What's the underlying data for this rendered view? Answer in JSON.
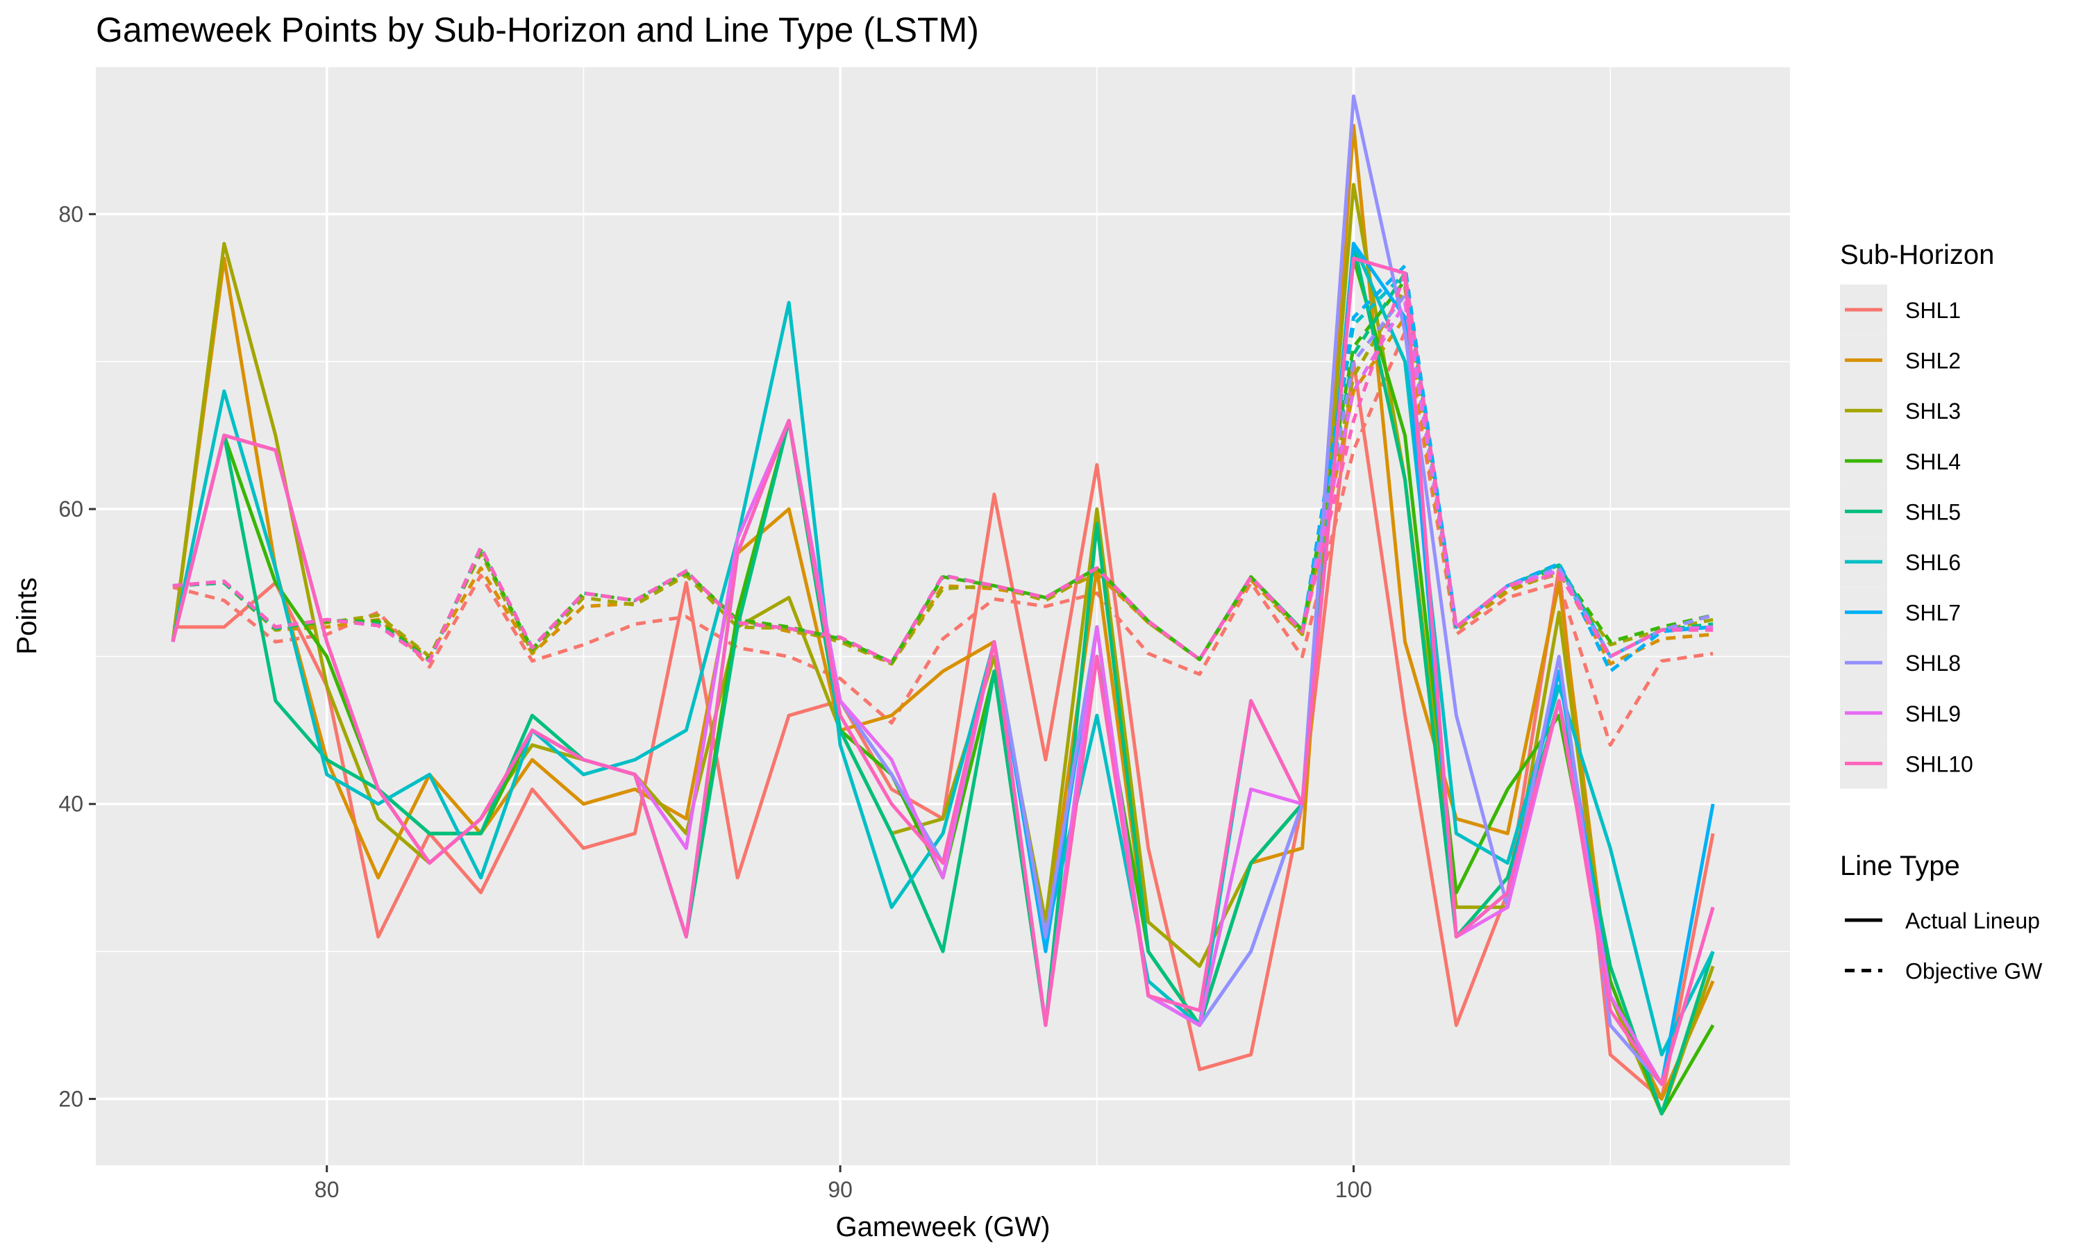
{
  "chart_data": {
    "type": "line",
    "title": "Gameweek Points by Sub-Horizon and Line Type (LSTM)",
    "xlabel": "Gameweek (GW)",
    "ylabel": "Points",
    "xlim": [
      75.5,
      108.5
    ],
    "ylim": [
      15.5,
      90.0
    ],
    "xticks": [
      80,
      90,
      100
    ],
    "yticks": [
      20,
      40,
      60,
      80
    ],
    "grid": true,
    "legend": {
      "placement": "right",
      "color_title": "Sub-Horizon",
      "linetype_title": "Line Type",
      "linetypes": [
        {
          "label": "Actual Lineup",
          "dash": "solid"
        },
        {
          "label": "Objective GW",
          "dash": "dashed"
        }
      ]
    },
    "x": [
      77,
      78,
      79,
      80,
      81,
      82,
      83,
      84,
      85,
      86,
      87,
      88,
      89,
      90,
      91,
      92,
      93,
      94,
      95,
      96,
      97,
      98,
      99,
      100,
      101,
      102,
      103,
      104,
      105,
      106,
      107
    ],
    "series": [
      {
        "name": "SHL1",
        "color": "#F8766D",
        "actual": [
          52,
          52,
          55,
          48,
          31,
          38,
          34,
          41,
          37,
          38,
          55,
          35,
          46,
          47,
          41,
          39,
          61,
          43,
          63,
          37,
          22,
          23,
          40,
          70,
          46,
          25,
          34,
          56,
          23,
          20,
          38
        ],
        "objective": [
          54.7,
          53.8,
          51.0,
          51.5,
          53.0,
          49.3,
          55.5,
          49.7,
          50.8,
          52.2,
          52.7,
          50.6,
          50.0,
          48.5,
          45.5,
          51.2,
          53.9,
          53.4,
          54.3,
          50.2,
          48.8,
          55.0,
          50.0,
          64.0,
          72.0,
          51.5,
          54.0,
          55.0,
          44.0,
          49.7,
          50.2
        ]
      },
      {
        "name": "SHL2",
        "color": "#D89000",
        "actual": [
          51,
          77,
          56,
          43,
          35,
          42,
          38,
          43,
          40,
          41,
          39,
          57,
          60,
          45,
          46,
          49,
          51,
          31,
          56,
          30,
          25,
          36,
          37,
          86,
          51,
          39,
          38,
          55,
          27,
          20,
          28
        ],
        "objective": [
          54.8,
          55.0,
          51.8,
          52.0,
          52.5,
          50.0,
          56.0,
          50.2,
          53.4,
          53.6,
          55.6,
          52.5,
          51.7,
          51.2,
          49.5,
          54.8,
          54.6,
          54.0,
          55.6,
          52.3,
          49.8,
          55.2,
          51.5,
          68.0,
          73.0,
          51.8,
          54.4,
          55.8,
          49.5,
          51.2,
          51.5
        ]
      },
      {
        "name": "SHL3",
        "color": "#A3A500",
        "actual": [
          51,
          78,
          65,
          48,
          39,
          36,
          39,
          44,
          43,
          42,
          38,
          52,
          54,
          45,
          38,
          39,
          50,
          32,
          60,
          32,
          29,
          36,
          40,
          82,
          62,
          33,
          33,
          53,
          27,
          19,
          29
        ],
        "objective": [
          54.8,
          55.0,
          51.8,
          52.3,
          52.8,
          50.0,
          57.0,
          50.3,
          54.0,
          53.5,
          55.5,
          52.0,
          51.9,
          51.0,
          49.5,
          54.6,
          54.8,
          53.8,
          55.8,
          52.3,
          49.8,
          55.4,
          51.5,
          69.0,
          75.0,
          51.8,
          54.6,
          55.6,
          50.8,
          51.8,
          52.5
        ]
      },
      {
        "name": "SHL4",
        "color": "#39B600",
        "actual": [
          51,
          65,
          55,
          50,
          41,
          38,
          38,
          45,
          43,
          42,
          31,
          53,
          66,
          45,
          42,
          35,
          49,
          25,
          50,
          30,
          25,
          36,
          40,
          77,
          65,
          34,
          41,
          46,
          28,
          19,
          25
        ],
        "objective": [
          54.8,
          55.0,
          51.9,
          52.4,
          52.4,
          49.8,
          57.2,
          50.5,
          54.3,
          53.8,
          55.7,
          52.5,
          52.0,
          51.2,
          49.6,
          55.4,
          54.8,
          54.0,
          56.0,
          52.4,
          49.8,
          55.4,
          51.8,
          71.0,
          75.5,
          52.0,
          54.8,
          56.0,
          51.0,
          52.0,
          52.8
        ]
      },
      {
        "name": "SHL5",
        "color": "#00BF7D",
        "actual": [
          51,
          65,
          47,
          43,
          41,
          38,
          38,
          46,
          43,
          42,
          31,
          52,
          66,
          45,
          38,
          30,
          49,
          25,
          59,
          30,
          25,
          36,
          40,
          78,
          62,
          31,
          35,
          47,
          29,
          19,
          30
        ],
        "objective": [
          54.8,
          55.0,
          51.9,
          52.5,
          52.2,
          49.7,
          57.4,
          50.6,
          54.3,
          53.8,
          55.8,
          52.3,
          51.9,
          51.3,
          49.6,
          55.5,
          54.8,
          54.0,
          56.0,
          52.4,
          49.8,
          55.4,
          51.8,
          70.5,
          76.0,
          52.0,
          54.8,
          56.2,
          50.0,
          51.8,
          52.2
        ]
      },
      {
        "name": "SHL6",
        "color": "#00BFC4",
        "actual": [
          51,
          68,
          56,
          42,
          40,
          42,
          35,
          45,
          42,
          43,
          45,
          58,
          74,
          44,
          33,
          38,
          51,
          31,
          46,
          28,
          25,
          47,
          40,
          78,
          70,
          38,
          36,
          48,
          37,
          23,
          30
        ],
        "objective": [
          54.8,
          55.1,
          52.0,
          52.5,
          52.1,
          49.7,
          57.4,
          50.6,
          54.3,
          53.8,
          55.8,
          52.3,
          51.9,
          51.3,
          49.6,
          55.5,
          54.8,
          54.0,
          56.0,
          52.4,
          49.8,
          55.4,
          51.7,
          72.5,
          76.0,
          52.0,
          54.8,
          56.3,
          50.0,
          51.8,
          52.0
        ]
      },
      {
        "name": "SHL7",
        "color": "#00B0F6",
        "actual": [
          51,
          65,
          64,
          51,
          41,
          36,
          39,
          45,
          43,
          42,
          31,
          57,
          66,
          47,
          42,
          36,
          51,
          30,
          52,
          27,
          25,
          30,
          40,
          78,
          73,
          31,
          34,
          49,
          27,
          21,
          40
        ],
        "objective": [
          54.8,
          55.1,
          52.0,
          52.5,
          52.1,
          49.7,
          57.4,
          50.6,
          54.3,
          53.8,
          55.8,
          52.3,
          51.9,
          51.3,
          49.6,
          55.5,
          54.8,
          54.0,
          56.0,
          52.4,
          49.8,
          55.4,
          51.7,
          73.0,
          76.5,
          52.0,
          54.8,
          56.3,
          49.0,
          51.7,
          52.0
        ]
      },
      {
        "name": "SHL8",
        "color": "#9590FF",
        "actual": [
          51,
          65,
          64,
          51,
          41,
          36,
          39,
          45,
          43,
          42,
          37,
          58,
          66,
          47,
          42,
          36,
          51,
          31,
          52,
          27,
          25,
          30,
          40,
          88,
          72,
          46,
          33,
          50,
          25,
          21,
          33
        ],
        "objective": [
          54.8,
          55.1,
          52.0,
          52.5,
          52.1,
          49.7,
          57.4,
          50.6,
          54.3,
          53.8,
          55.8,
          52.3,
          51.9,
          51.3,
          49.6,
          55.5,
          54.8,
          54.0,
          56.0,
          52.4,
          49.8,
          55.4,
          51.7,
          70.0,
          74.5,
          52.0,
          54.8,
          56.0,
          50.0,
          51.8,
          52.8
        ]
      },
      {
        "name": "SHL9",
        "color": "#E76BF3",
        "actual": [
          51,
          65,
          64,
          51,
          41,
          36,
          39,
          45,
          43,
          42,
          37,
          58,
          66,
          47,
          43,
          35,
          51,
          25,
          52,
          27,
          25,
          41,
          40,
          77,
          76,
          31,
          33,
          47,
          27,
          21,
          33
        ],
        "objective": [
          54.8,
          55.1,
          52.0,
          52.5,
          52.1,
          49.7,
          57.4,
          50.6,
          54.3,
          53.8,
          55.8,
          52.3,
          51.9,
          51.3,
          49.6,
          55.5,
          54.8,
          54.0,
          56.0,
          52.4,
          49.8,
          55.4,
          51.7,
          68.0,
          74.0,
          52.0,
          54.8,
          55.8,
          50.0,
          51.8,
          52.0
        ]
      },
      {
        "name": "SHL10",
        "color": "#FF62BC",
        "actual": [
          51,
          65,
          64,
          51,
          41,
          36,
          39,
          45,
          43,
          42,
          31,
          57,
          66,
          46,
          40,
          36,
          51,
          25,
          50,
          27,
          26,
          47,
          40,
          77,
          76,
          31,
          34,
          47,
          26,
          21,
          33
        ],
        "objective": [
          54.8,
          55.1,
          52.0,
          52.5,
          52.1,
          49.7,
          57.4,
          50.6,
          54.3,
          53.8,
          55.8,
          52.3,
          51.9,
          51.3,
          49.6,
          55.5,
          54.8,
          54.0,
          56.0,
          52.4,
          49.8,
          55.4,
          51.7,
          66.0,
          76.0,
          52.0,
          54.8,
          55.6,
          50.0,
          51.8,
          51.8
        ]
      }
    ]
  }
}
